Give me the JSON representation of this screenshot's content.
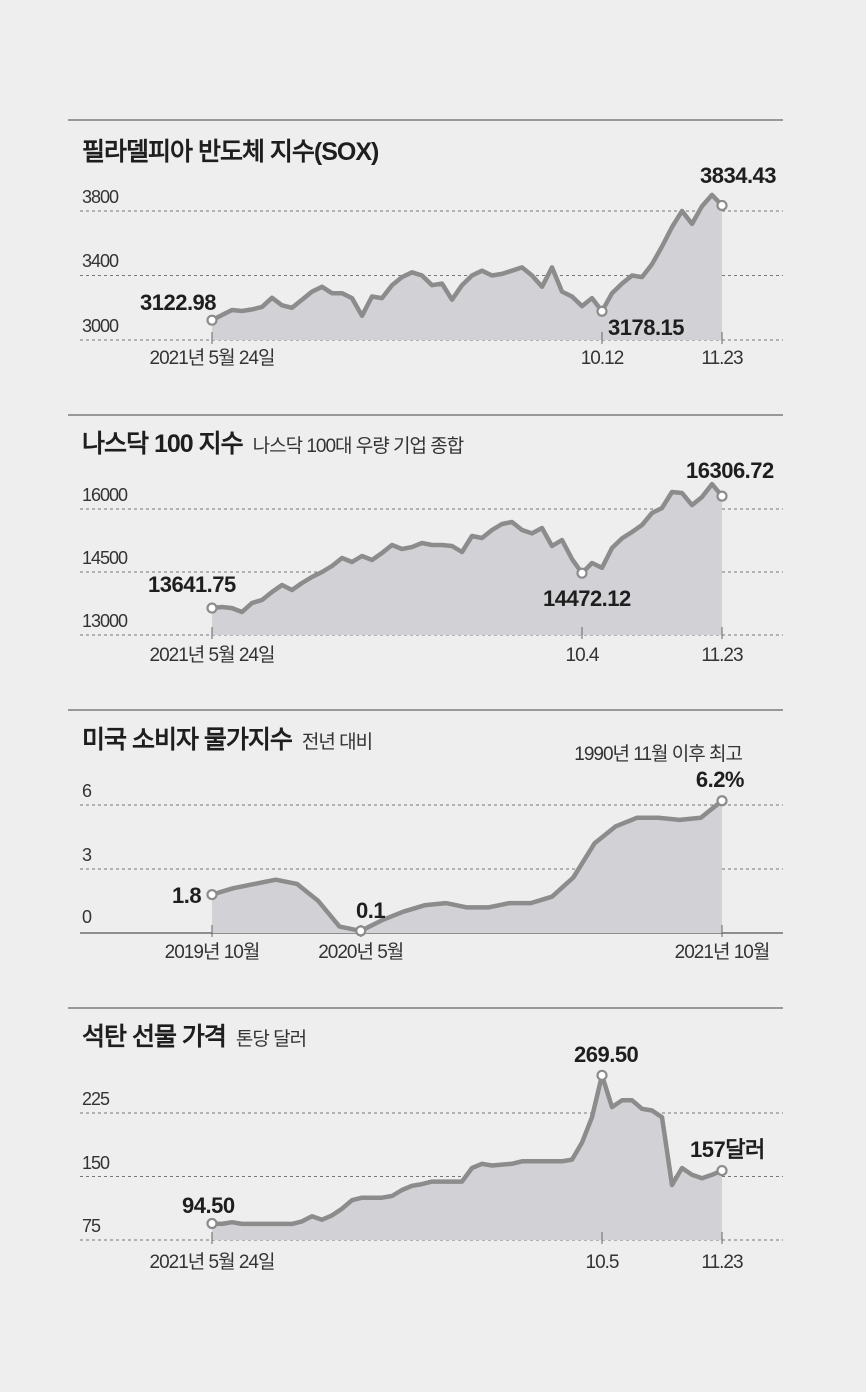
{
  "colors": {
    "background": "#eeeeee",
    "area_fill": "#d2d2d6",
    "line": "#8c8c8c",
    "text": "#1e1e1e"
  },
  "chart_data": [
    {
      "type": "area",
      "title": "필라델피아 반도체 지수(SOX)",
      "subtitle": "",
      "yticks": [
        3000,
        3400,
        3800
      ],
      "grid": true,
      "values": [
        3122.98,
        3155,
        3186,
        3180,
        3190,
        3205,
        3262,
        3215,
        3200,
        3250,
        3300,
        3330,
        3290,
        3290,
        3260,
        3150,
        3270,
        3260,
        3340,
        3390,
        3420,
        3400,
        3340,
        3350,
        3250,
        3340,
        3400,
        3430,
        3400,
        3410,
        3430,
        3450,
        3400,
        3330,
        3450,
        3300,
        3270,
        3210,
        3260,
        3178.15,
        3290,
        3350,
        3400,
        3390,
        3470,
        3580,
        3700,
        3800,
        3720,
        3830,
        3900,
        3834.43
      ],
      "annotations": [
        {
          "value": 3122.98,
          "label": "3122.98",
          "tick": "2021년 5월 24일"
        },
        {
          "value": 3178.15,
          "label": "3178.15",
          "tick": "10.12"
        },
        {
          "value": 3834.43,
          "label": "3834.43",
          "tick": "11.23"
        }
      ]
    },
    {
      "type": "area",
      "title": "나스닥 100 지수",
      "subtitle": "나스닥 100대 우량 기업 종합",
      "yticks": [
        13000,
        14500,
        16000
      ],
      "grid": true,
      "values": [
        13641.75,
        13666,
        13640,
        13547,
        13762,
        13833,
        14023,
        14190,
        14071,
        14238,
        14380,
        14500,
        14642,
        14833,
        14737,
        14880,
        14785,
        14952,
        15142,
        15047,
        15094,
        15190,
        15142,
        15142,
        15118,
        14975,
        15356,
        15309,
        15500,
        15642,
        15690,
        15500,
        15420,
        15547,
        15118,
        15261,
        14809,
        14472.12,
        14714,
        14600,
        15071,
        15300,
        15452,
        15618,
        15904,
        16023,
        16404,
        16380,
        16094,
        16285,
        16594,
        16306.72
      ],
      "annotations": [
        {
          "value": 13641.75,
          "label": "13641.75",
          "tick": "2021년 5월 24일"
        },
        {
          "value": 14472.12,
          "label": "14472.12",
          "tick": "10.4"
        },
        {
          "value": 16306.72,
          "label": "16306.72",
          "tick": "11.23"
        }
      ]
    },
    {
      "type": "area",
      "title": "미국 소비자 물가지수",
      "subtitle": "전년 대비",
      "yticks": [
        0,
        3,
        6
      ],
      "grid": true,
      "x": [
        "2019-10",
        "2019-11",
        "2019-12",
        "2020-01",
        "2020-02",
        "2020-03",
        "2020-04",
        "2020-05",
        "2020-06",
        "2020-07",
        "2020-08",
        "2020-09",
        "2020-10",
        "2020-11",
        "2020-12",
        "2021-01",
        "2021-02",
        "2021-03",
        "2021-04",
        "2021-05",
        "2021-06",
        "2021-07",
        "2021-08",
        "2021-09",
        "2021-10"
      ],
      "values": [
        1.8,
        2.1,
        2.3,
        2.5,
        2.3,
        1.5,
        0.3,
        0.1,
        0.6,
        1.0,
        1.3,
        1.4,
        1.2,
        1.2,
        1.4,
        1.4,
        1.7,
        2.6,
        4.2,
        5.0,
        5.4,
        5.4,
        5.3,
        5.4,
        6.2
      ],
      "annotations": [
        {
          "value": 1.8,
          "label": "1.8",
          "tick": "2019년 10월"
        },
        {
          "value": 0.1,
          "label": "0.1",
          "tick": "2020년 5월"
        },
        {
          "value": 6.2,
          "label": "6.2%",
          "tick": "2021년 10월",
          "note": "1990년 11월 이후 최고"
        }
      ]
    },
    {
      "type": "area",
      "title": "석탄 선물 가격",
      "subtitle": "톤당 달러",
      "yticks": [
        75,
        150,
        225
      ],
      "grid": true,
      "values": [
        94.5,
        94,
        96,
        94,
        94,
        94,
        94,
        94,
        94,
        97,
        103,
        99,
        104,
        112,
        122,
        125,
        125,
        125,
        127,
        134,
        139,
        141,
        144,
        144,
        144,
        144,
        160,
        165,
        163,
        164,
        165,
        168,
        168,
        168,
        168,
        168,
        170,
        190,
        220,
        269.5,
        232,
        240,
        240,
        230,
        228,
        220,
        140,
        160,
        152,
        148,
        152,
        157
      ],
      "annotations": [
        {
          "value": 94.5,
          "label": "94.50",
          "tick": "2021년 5월 24일"
        },
        {
          "value": 269.5,
          "label": "269.50",
          "tick": "10.5"
        },
        {
          "value": 157,
          "label": "157달러",
          "tick": "11.23"
        }
      ]
    }
  ]
}
